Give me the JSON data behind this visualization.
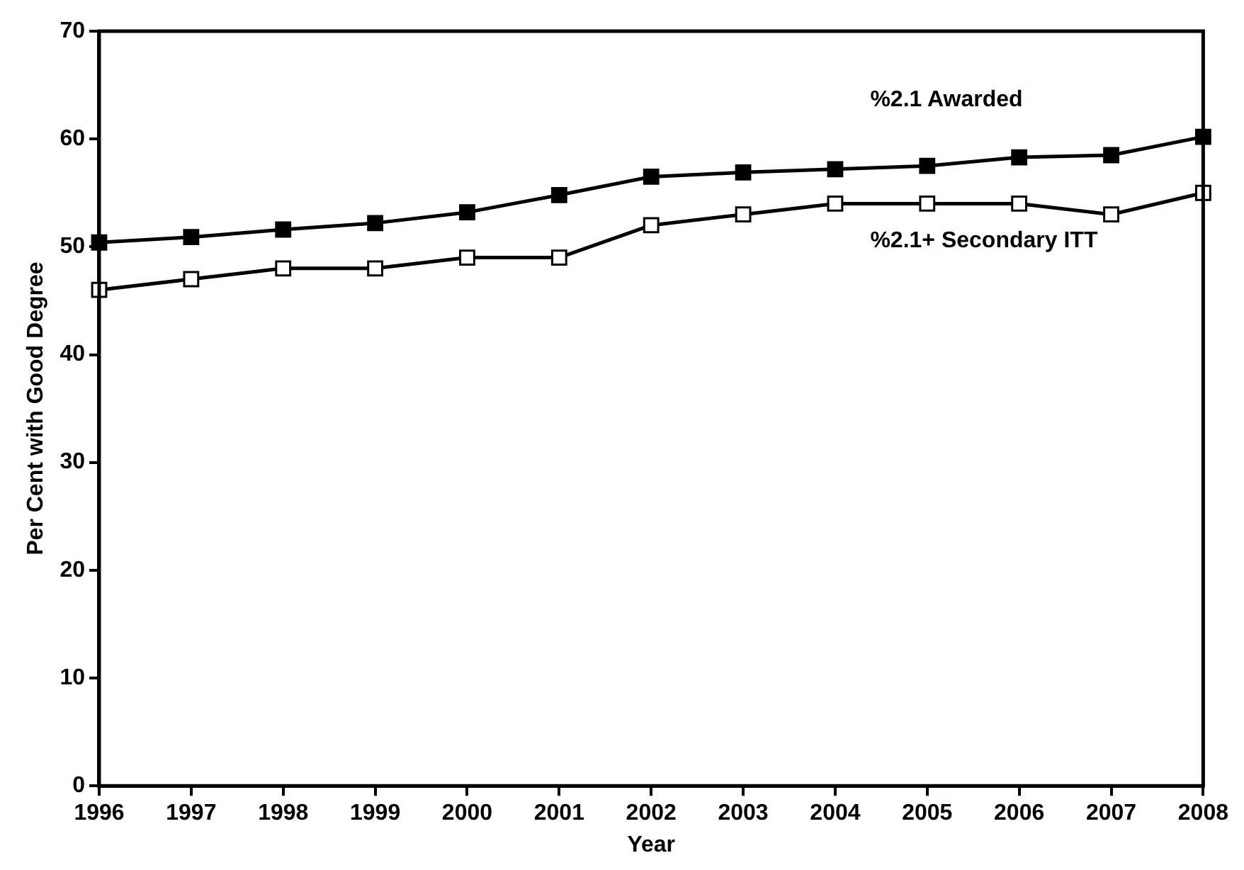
{
  "chart_data": {
    "type": "line",
    "xlabel": "Year",
    "ylabel": "Per Cent with Good Degree",
    "categories": [
      "1996",
      "1997",
      "1998",
      "1999",
      "2000",
      "2001",
      "2002",
      "2003",
      "2004",
      "2005",
      "2006",
      "2007",
      "2008"
    ],
    "series": [
      {
        "name": "%2.1 Awarded",
        "color": "#000000",
        "values": [
          50.4,
          50.9,
          51.6,
          52.2,
          53.2,
          54.8,
          56.5,
          56.9,
          57.2,
          57.5,
          58.3,
          58.5,
          60.2
        ]
      },
      {
        "name": "%2.1+ Secondary ITT",
        "color": "#ffffff",
        "values": [
          46,
          47,
          48,
          48,
          49,
          49,
          52,
          53,
          54,
          54,
          54,
          53,
          55
        ]
      }
    ],
    "ylim": [
      0,
      70
    ],
    "yticks": [
      0,
      10,
      20,
      30,
      40,
      50,
      60,
      70
    ],
    "grid": false,
    "legend": false,
    "marker": "square",
    "line_style": "solid"
  }
}
